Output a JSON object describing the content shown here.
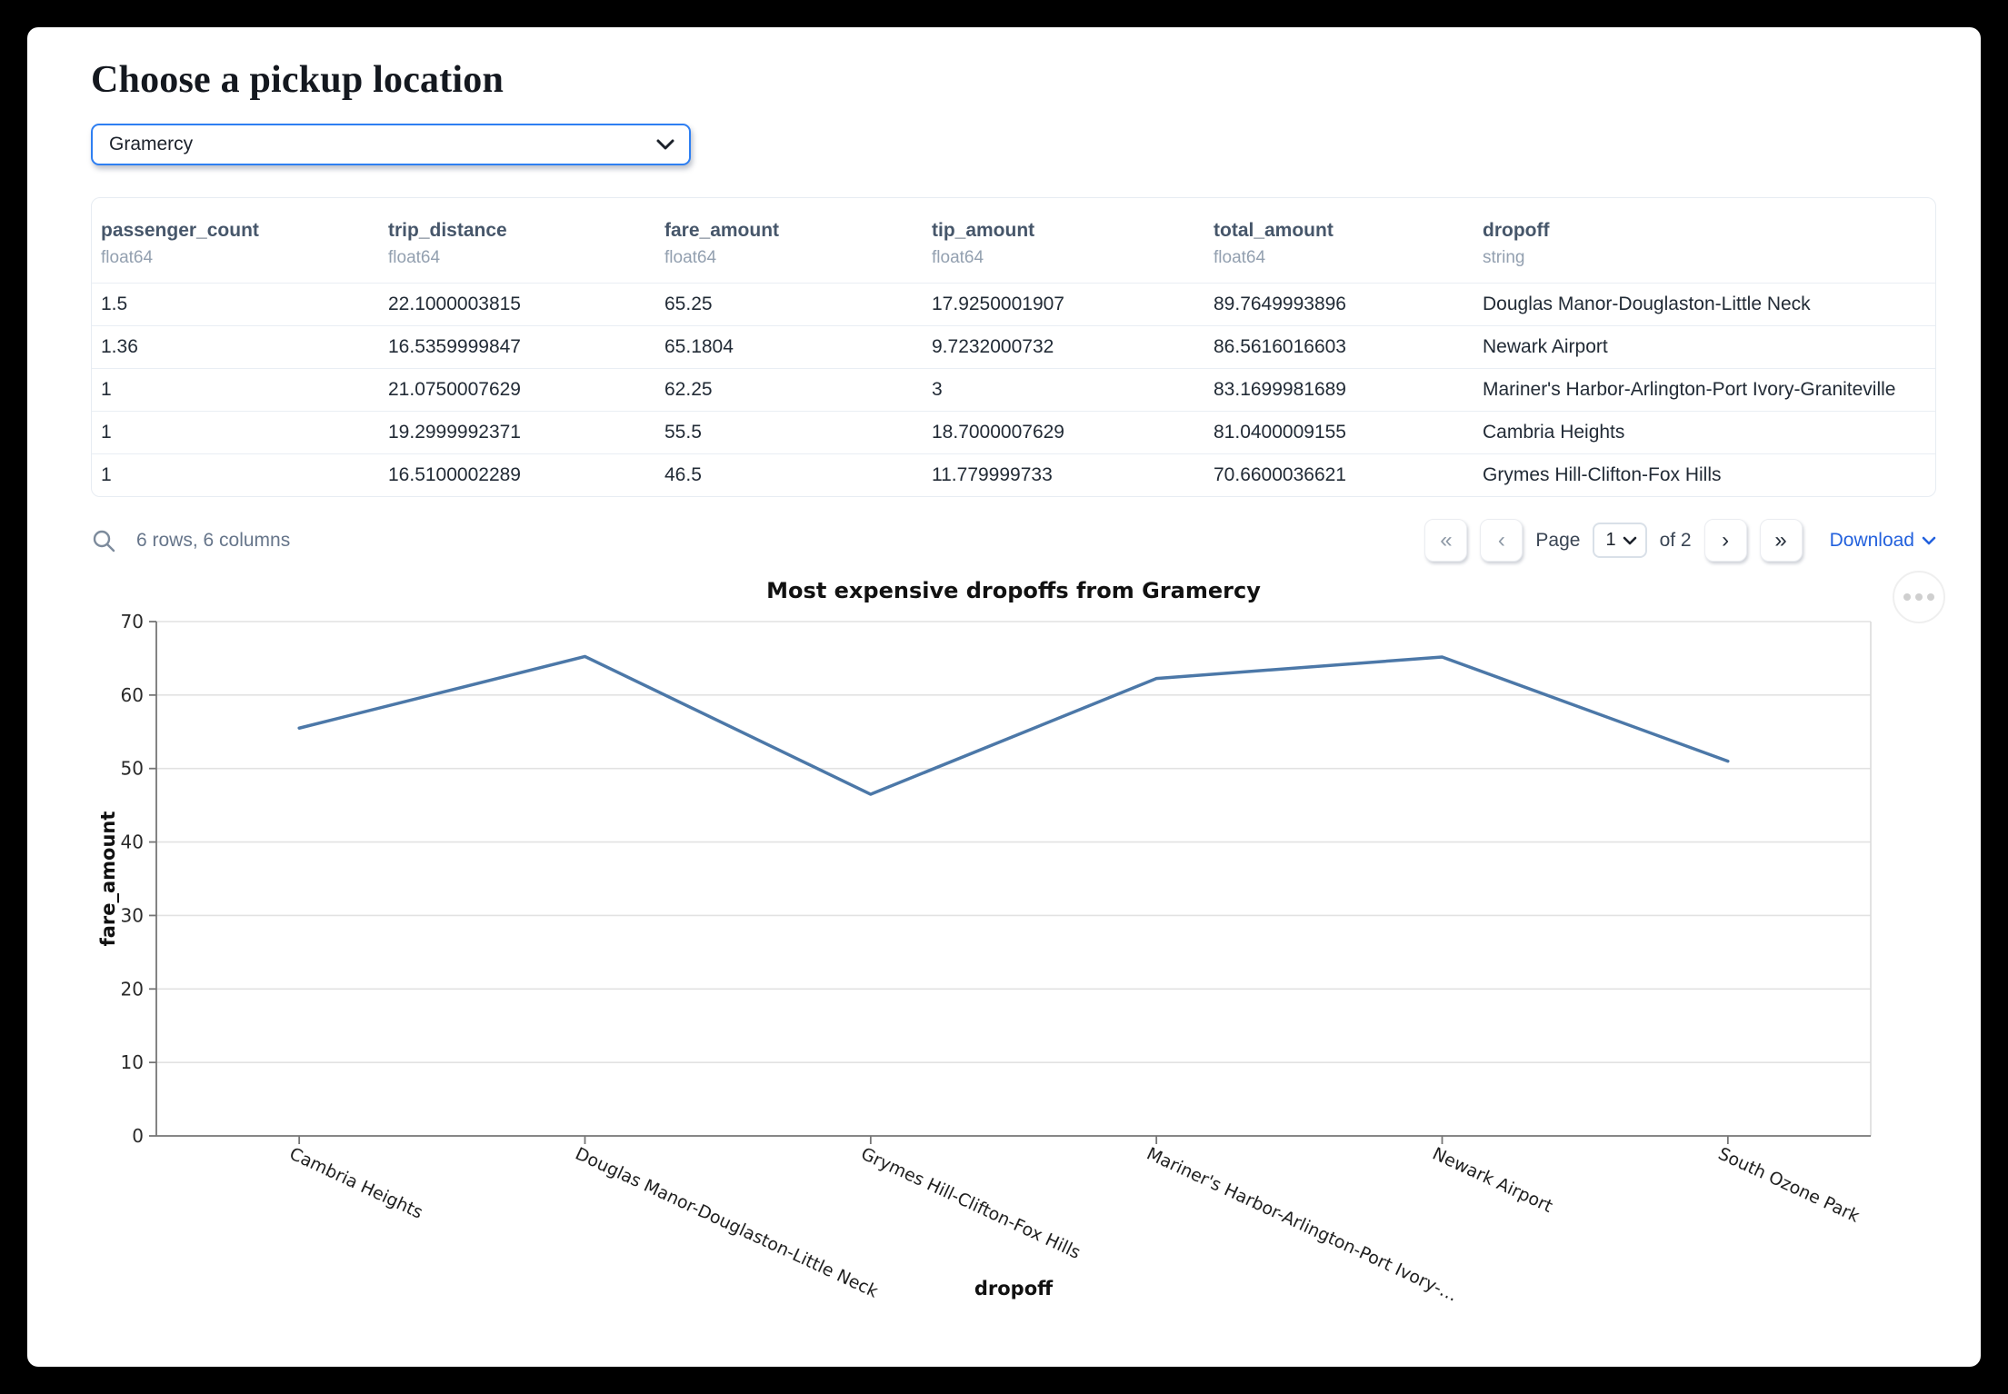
{
  "page": {
    "title": "Choose a pickup location"
  },
  "pickup_select": {
    "value": "Gramercy"
  },
  "table": {
    "columns": [
      {
        "name": "passenger_count",
        "dtype": "float64"
      },
      {
        "name": "trip_distance",
        "dtype": "float64"
      },
      {
        "name": "fare_amount",
        "dtype": "float64"
      },
      {
        "name": "tip_amount",
        "dtype": "float64"
      },
      {
        "name": "total_amount",
        "dtype": "float64"
      },
      {
        "name": "dropoff",
        "dtype": "string"
      }
    ],
    "rows": [
      [
        "1.5",
        "22.1000003815",
        "65.25",
        "17.9250001907",
        "89.7649993896",
        "Douglas Manor-Douglaston-Little Neck"
      ],
      [
        "1.36",
        "16.5359999847",
        "65.1804",
        "9.7232000732",
        "86.5616016603",
        "Newark Airport"
      ],
      [
        "1",
        "21.0750007629",
        "62.25",
        "3",
        "83.1699981689",
        "Mariner's Harbor-Arlington-Port Ivory-Graniteville"
      ],
      [
        "1",
        "19.2999992371",
        "55.5",
        "18.7000007629",
        "81.0400009155",
        "Cambria Heights"
      ],
      [
        "1",
        "16.5100002289",
        "46.5",
        "11.779999733",
        "70.6600036621",
        "Grymes Hill-Clifton-Fox Hills"
      ]
    ],
    "footer": {
      "summary": "6 rows, 6 columns"
    },
    "pagination": {
      "page_label": "Page",
      "current_page": "1",
      "total_label": "of 2",
      "download_label": "Download",
      "icons": {
        "first_page": "«",
        "prev_page": "‹",
        "next_page": "›",
        "last_page": "»"
      }
    }
  },
  "chart_data": {
    "type": "line",
    "title": "Most expensive dropoffs from Gramercy",
    "xlabel": "dropoff",
    "ylabel": "fare_amount",
    "categories": [
      "Cambria Heights",
      "Douglas Manor-Douglaston-Little Neck",
      "Grymes Hill-Clifton-Fox Hills",
      "Mariner's Harbor-Arlington-Port Ivory-…",
      "Newark Airport",
      "South Ozone Park"
    ],
    "values": [
      55.5,
      65.25,
      46.5,
      62.25,
      65.1804,
      51
    ],
    "ylim": [
      0,
      70
    ],
    "yticks": [
      0,
      10,
      20,
      30,
      40,
      50,
      60,
      70
    ],
    "line_color": "#4c78a8",
    "grid": true,
    "legend": "none",
    "x_label_rotation_deg": 25
  }
}
